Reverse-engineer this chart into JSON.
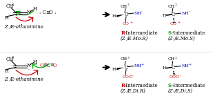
{
  "bg_color": "#ffffff",
  "title": "",
  "top_row": {
    "reactant_label": "Zⁱ/E-ethanimine",
    "co_label": ": C≡O :",
    "arrow_label": "",
    "product1_label": "R-Intermediate",
    "product1_sublabel": "(Zⁱ/E.Mo.R)",
    "product2_label": "S-Intermediate",
    "product2_sublabel": "(Zⁱ/E.Mo.S)",
    "product1_color": "#cc0000",
    "product2_color": "#008800",
    "product1_R_color": "#cc0000",
    "product2_S_color": "#008800"
  },
  "bottom_row": {
    "reactant_label": "Zⁱ/E-ethanimine",
    "co2_label": "O≡C≡O",
    "product1_label": "R-Intermediate",
    "product1_sublabel": "(Zⁱ/E.Di.R)",
    "product2_label": "S-Intermediate",
    "product2_sublabel": "(Zⁱ/E.Di.S)",
    "product1_color": "#cc0000",
    "product2_color": "#008800"
  },
  "green_arrow_color": "#00aa00",
  "red_arrow_color": "#cc0000",
  "black_color": "#000000",
  "blue_color": "#0000cc",
  "red_color": "#cc0000",
  "green_color": "#008800",
  "gray_color": "#888888"
}
